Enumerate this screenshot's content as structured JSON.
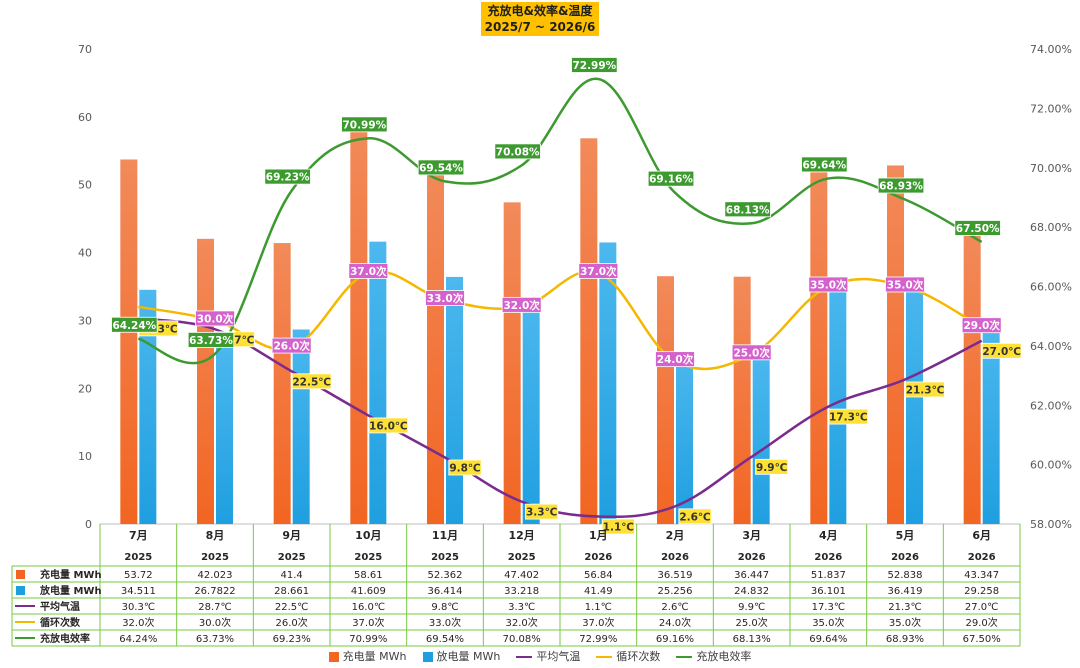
{
  "title": {
    "line1": "充放电&效率&温度",
    "line2": "2025/7 ~ 2026/6"
  },
  "colors": {
    "charge": "#f26522",
    "discharge": "#1f9fe0",
    "temp": "#7b2a8e",
    "cycles": "#f5b800",
    "efficiency": "#3c9a2f",
    "label_cycles_bg": "#d461cc",
    "label_temp_bg": "#ffe135",
    "label_eff_bg": "#3c9a2f",
    "table_border": "#7ac943"
  },
  "chart_data": {
    "type": "bar",
    "categories": [
      "7月",
      "8月",
      "9月",
      "10月",
      "11月",
      "12月",
      "1月",
      "2月",
      "3月",
      "4月",
      "5月",
      "6月"
    ],
    "years": [
      "2025",
      "2025",
      "2025",
      "2025",
      "2025",
      "2025",
      "2026",
      "2026",
      "2026",
      "2026",
      "2026",
      "2026"
    ],
    "y_left": {
      "min": 0,
      "max": 70,
      "ticks": [
        "0",
        "10",
        "20",
        "30",
        "40",
        "50",
        "60",
        "70"
      ]
    },
    "y_right": {
      "min": 58,
      "max": 74,
      "ticks": [
        "58.00%",
        "60.00%",
        "62.00%",
        "64.00%",
        "66.00%",
        "68.00%",
        "70.00%",
        "72.00%",
        "74.00%"
      ]
    },
    "series": [
      {
        "key": "charge",
        "name": "充电量 MWh",
        "kind": "bar",
        "values": [
          53.72,
          42.023,
          41.4,
          58.61,
          52.362,
          47.402,
          56.84,
          36.519,
          36.447,
          51.837,
          52.838,
          43.347
        ],
        "display": [
          "53.72",
          "42.023",
          "41.4",
          "58.61",
          "52.362",
          "47.402",
          "56.84",
          "36.519",
          "36.447",
          "51.837",
          "52.838",
          "43.347"
        ]
      },
      {
        "key": "discharge",
        "name": "放电量 MWh",
        "kind": "bar",
        "values": [
          34.511,
          26.7822,
          28.661,
          41.609,
          36.414,
          33.218,
          41.49,
          25.256,
          24.832,
          36.101,
          36.419,
          29.258
        ],
        "display": [
          "34.511",
          "26.7822",
          "28.661",
          "41.609",
          "36.414",
          "33.218",
          "41.49",
          "25.256",
          "24.832",
          "36.101",
          "36.419",
          "29.258"
        ]
      },
      {
        "key": "temp",
        "name": "平均气温",
        "kind": "line",
        "values": [
          30.3,
          28.7,
          22.5,
          16.0,
          9.8,
          3.3,
          1.1,
          2.6,
          9.9,
          17.3,
          21.3,
          27.0
        ],
        "display": [
          "30.3℃",
          "28.7℃",
          "22.5℃",
          "16.0℃",
          "9.8℃",
          "3.3℃",
          "1.1℃",
          "2.6℃",
          "9.9℃",
          "17.3℃",
          "21.3℃",
          "27.0℃"
        ]
      },
      {
        "key": "cycles",
        "name": "循环次数",
        "kind": "line",
        "values": [
          32,
          30,
          26,
          37,
          33,
          32,
          37,
          24,
          25,
          35,
          35,
          29
        ],
        "display": [
          "32.0次",
          "30.0次",
          "26.0次",
          "37.0次",
          "33.0次",
          "32.0次",
          "37.0次",
          "24.0次",
          "25.0次",
          "35.0次",
          "35.0次",
          "29.0次"
        ]
      },
      {
        "key": "efficiency",
        "name": "充放电效率",
        "kind": "line",
        "axis": "right",
        "values": [
          64.24,
          63.73,
          69.23,
          70.99,
          69.54,
          70.08,
          72.99,
          69.16,
          68.13,
          69.64,
          68.93,
          67.5
        ],
        "display": [
          "64.24%",
          "63.73%",
          "69.23%",
          "70.99%",
          "69.54%",
          "70.08%",
          "72.99%",
          "69.16%",
          "68.13%",
          "69.64%",
          "68.93%",
          "67.50%"
        ]
      }
    ],
    "chart_labels": {
      "temp": [
        "30.3℃",
        "28.7℃",
        "22.5℃",
        "16.0℃",
        "9.8℃",
        "3.3℃",
        "1.1℃",
        "2.6℃",
        "9.9℃",
        "17.3℃",
        "21.3℃",
        "27.0℃"
      ],
      "cycles": [
        "",
        "30.0次",
        "26.0次",
        "37.0次",
        "33.0次",
        "32.0次",
        "37.0次",
        "24.0次",
        "25.0次",
        "35.0次",
        "35.0次",
        "29.0次"
      ],
      "efficiency": [
        "64.24%",
        "63.73%",
        "69.23%",
        "70.99%",
        "69.54%",
        "70.08%",
        "72.99%",
        "69.16%",
        "68.13%",
        "69.64%",
        "68.93%",
        "67.50%"
      ]
    },
    "legend_position": "bottom",
    "grid": false
  }
}
